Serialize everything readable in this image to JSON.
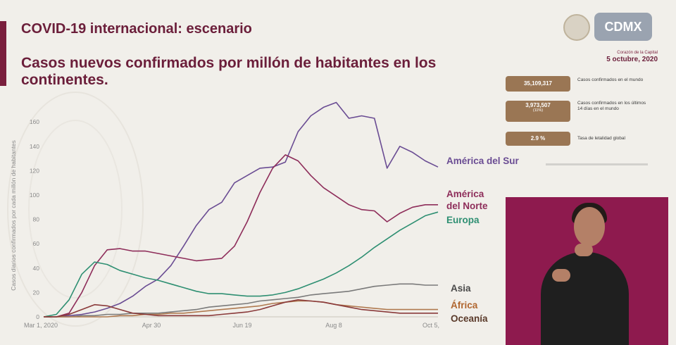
{
  "header": {
    "section_title": "COVID-19 internacional: escenario",
    "chart_title": "Casos nuevos confirmados por millón de habitantes en los continentes.",
    "date": "5 octubre, 2020",
    "logo_subtitle": "Corazón de la Capital"
  },
  "stats": [
    {
      "value": "35,109,317",
      "sub": "",
      "label": "Casos confirmados en el mundo"
    },
    {
      "value": "3,973,507",
      "sub": "(11%)",
      "label": "Casos confirmados en los últimos 14 días en el mundo"
    },
    {
      "value": "2.9 %",
      "sub": "",
      "label": "Tasa de letalidad global"
    }
  ],
  "colors": {
    "brand": "#6b1e3a",
    "stat_box": "#9a7654",
    "video_bg": "#8e1a4e"
  },
  "chart_data": {
    "type": "line",
    "title": "Casos nuevos confirmados por millón de habitantes en los continentes.",
    "ylabel": "Casos diarios confirmados por cada millón de habitantes",
    "xlabel": "",
    "x_tick_labels": [
      "Mar 1, 2020",
      "Apr 30",
      "Jun 19",
      "Aug 8",
      "Oct 5,"
    ],
    "y_ticks": [
      0,
      20,
      40,
      60,
      80,
      100,
      120,
      140,
      160
    ],
    "ylim": [
      0,
      178
    ],
    "grid": false,
    "legend": "series labels at right end of lines",
    "x": [
      "2020-03-01",
      "2020-03-08",
      "2020-03-15",
      "2020-03-22",
      "2020-03-29",
      "2020-04-05",
      "2020-04-12",
      "2020-04-19",
      "2020-04-26",
      "2020-05-03",
      "2020-05-10",
      "2020-05-17",
      "2020-05-24",
      "2020-05-31",
      "2020-06-07",
      "2020-06-14",
      "2020-06-21",
      "2020-06-28",
      "2020-07-05",
      "2020-07-12",
      "2020-07-19",
      "2020-07-26",
      "2020-08-02",
      "2020-08-09",
      "2020-08-16",
      "2020-08-23",
      "2020-08-30",
      "2020-09-06",
      "2020-09-13",
      "2020-09-20",
      "2020-09-27",
      "2020-10-04"
    ],
    "series": [
      {
        "name": "América del Sur",
        "color": "#6a4c93",
        "values": [
          0,
          0,
          1,
          2,
          4,
          7,
          11,
          17,
          25,
          31,
          42,
          58,
          75,
          88,
          94,
          110,
          116,
          122,
          123,
          127,
          152,
          165,
          172,
          176,
          163,
          165,
          163,
          122,
          140,
          135,
          128,
          123
        ]
      },
      {
        "name": "América del Norte",
        "color": "#8e2d5a",
        "values": [
          0,
          0,
          3,
          20,
          42,
          55,
          56,
          54,
          54,
          52,
          50,
          48,
          46,
          47,
          48,
          58,
          78,
          102,
          122,
          133,
          128,
          116,
          106,
          99,
          92,
          88,
          87,
          78,
          85,
          90,
          92,
          92
        ]
      },
      {
        "name": "Europa",
        "color": "#2e8f72",
        "values": [
          0,
          2,
          14,
          35,
          45,
          43,
          38,
          35,
          32,
          30,
          27,
          24,
          21,
          19,
          19,
          18,
          17,
          17,
          18,
          20,
          23,
          27,
          31,
          36,
          42,
          49,
          57,
          64,
          71,
          77,
          83,
          86
        ]
      },
      {
        "name": "Asia",
        "color": "#7a7a7a",
        "values": [
          0,
          0,
          0,
          1,
          1,
          2,
          2,
          3,
          3,
          3,
          4,
          5,
          6,
          8,
          9,
          10,
          11,
          13,
          14,
          15,
          16,
          18,
          19,
          20,
          21,
          23,
          25,
          26,
          27,
          27,
          26,
          26
        ]
      },
      {
        "name": "África",
        "color": "#b07a50",
        "values": [
          0,
          0,
          0,
          0,
          0,
          0,
          1,
          1,
          2,
          2,
          3,
          3,
          4,
          5,
          6,
          7,
          8,
          9,
          11,
          12,
          13,
          13,
          12,
          10,
          9,
          8,
          7,
          6,
          6,
          6,
          6,
          6
        ]
      },
      {
        "name": "Oceanía",
        "color": "#8a3a3a",
        "values": [
          0,
          0,
          2,
          6,
          10,
          9,
          6,
          3,
          2,
          1,
          1,
          1,
          1,
          1,
          2,
          3,
          4,
          6,
          9,
          12,
          14,
          13,
          12,
          10,
          8,
          6,
          5,
          4,
          3,
          3,
          3,
          3
        ]
      }
    ]
  }
}
